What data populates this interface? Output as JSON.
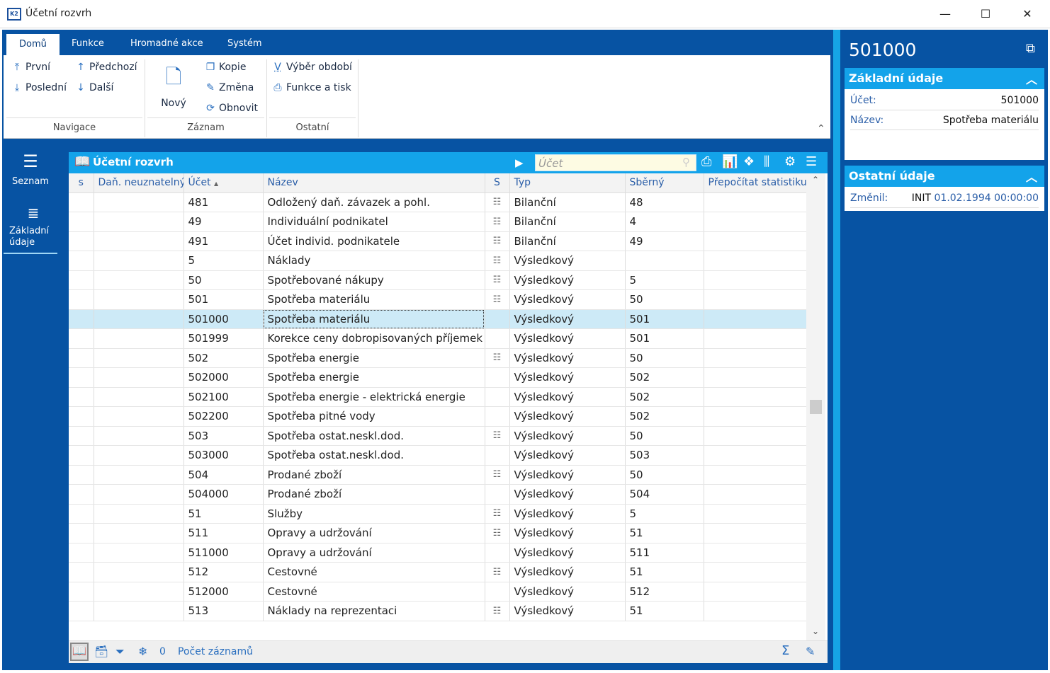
{
  "window": {
    "title": "Účetní rozvrh",
    "app_icon": "K2"
  },
  "ribbon": {
    "tabs": [
      "Domů",
      "Funkce",
      "Hromadné akce",
      "Systém"
    ],
    "nav": {
      "first": "První",
      "prev": "Předchozí",
      "last": "Poslední",
      "next": "Další",
      "group": "Navigace"
    },
    "record": {
      "new": "Nový",
      "copy": "Kopie",
      "edit": "Změna",
      "refresh": "Obnovit",
      "group": "Záznam"
    },
    "other": {
      "period": "Výběr období",
      "print": "Funkce a tisk",
      "group": "Ostatní"
    }
  },
  "sidebar": {
    "items": [
      {
        "label": "Seznam",
        "icon": "menu-icon"
      },
      {
        "label": "Základní údaje",
        "icon": "list-icon"
      }
    ]
  },
  "grid": {
    "title": "Účetní rozvrh",
    "search_placeholder": "Účet",
    "columns": [
      "s",
      "Daň. neuznatelný",
      "Účet",
      "Název",
      "S",
      "Typ",
      "Sběrný",
      "Přepočítat statistiku"
    ],
    "sort_indicator": "▲",
    "rows": [
      {
        "ucet": "481",
        "nazev": "Odložený daň. závazek a pohl.",
        "s": true,
        "typ": "Bilanční",
        "sberny": "48"
      },
      {
        "ucet": "49",
        "nazev": "Individuální podnikatel",
        "s": true,
        "typ": "Bilanční",
        "sberny": "4"
      },
      {
        "ucet": "491",
        "nazev": "Účet individ. podnikatele",
        "s": true,
        "typ": "Bilanční",
        "sberny": "49"
      },
      {
        "ucet": "5",
        "nazev": "Náklady",
        "s": true,
        "typ": "Výsledkový",
        "sberny": ""
      },
      {
        "ucet": "50",
        "nazev": "Spotřebované nákupy",
        "s": true,
        "typ": "Výsledkový",
        "sberny": "5"
      },
      {
        "ucet": "501",
        "nazev": "Spotřeba materiálu",
        "s": true,
        "typ": "Výsledkový",
        "sberny": "50"
      },
      {
        "ucet": "501000",
        "nazev": "Spotřeba materiálu",
        "s": false,
        "typ": "Výsledkový",
        "sberny": "501",
        "selected": true
      },
      {
        "ucet": "501999",
        "nazev": "Korekce ceny dobropisovaných příjemek",
        "s": false,
        "typ": "Výsledkový",
        "sberny": "501"
      },
      {
        "ucet": "502",
        "nazev": "Spotřeba energie",
        "s": true,
        "typ": "Výsledkový",
        "sberny": "50"
      },
      {
        "ucet": "502000",
        "nazev": "Spotřeba energie",
        "s": false,
        "typ": "Výsledkový",
        "sberny": "502"
      },
      {
        "ucet": "502100",
        "nazev": "Spotřeba energie - elektrická energie",
        "s": false,
        "typ": "Výsledkový",
        "sberny": "502"
      },
      {
        "ucet": "502200",
        "nazev": "Spotřeba pitné vody",
        "s": false,
        "typ": "Výsledkový",
        "sberny": "502"
      },
      {
        "ucet": "503",
        "nazev": "Spotřeba ostat.neskl.dod.",
        "s": true,
        "typ": "Výsledkový",
        "sberny": "50"
      },
      {
        "ucet": "503000",
        "nazev": "Spotřeba ostat.neskl.dod.",
        "s": false,
        "typ": "Výsledkový",
        "sberny": "503"
      },
      {
        "ucet": "504",
        "nazev": "Prodané zboží",
        "s": true,
        "typ": "Výsledkový",
        "sberny": "50"
      },
      {
        "ucet": "504000",
        "nazev": "Prodané zboží",
        "s": false,
        "typ": "Výsledkový",
        "sberny": "504"
      },
      {
        "ucet": "51",
        "nazev": "Služby",
        "s": true,
        "typ": "Výsledkový",
        "sberny": "5"
      },
      {
        "ucet": "511",
        "nazev": "Opravy a udržování",
        "s": true,
        "typ": "Výsledkový",
        "sberny": "51"
      },
      {
        "ucet": "511000",
        "nazev": "Opravy a udržování",
        "s": false,
        "typ": "Výsledkový",
        "sberny": "511"
      },
      {
        "ucet": "512",
        "nazev": "Cestovné",
        "s": true,
        "typ": "Výsledkový",
        "sberny": "51"
      },
      {
        "ucet": "512000",
        "nazev": "Cestovné",
        "s": false,
        "typ": "Výsledkový",
        "sberny": "512"
      },
      {
        "ucet": "513",
        "nazev": "Náklady na reprezentaci",
        "s": true,
        "typ": "Výsledkový",
        "sberny": "51"
      }
    ],
    "footer": {
      "filter_count": "0",
      "record_count_label": "Počet záznamů"
    }
  },
  "detail": {
    "title": "501000",
    "basic": {
      "header": "Základní údaje",
      "ucet_label": "Účet:",
      "ucet": "501000",
      "nazev_label": "Název:",
      "nazev": "Spotřeba materiálu"
    },
    "other": {
      "header": "Ostatní údaje",
      "changed_label": "Změnil:",
      "changed_user": "INIT",
      "changed_date": "01.02.1994 00:00:00"
    }
  },
  "colors": {
    "frame": "#0753a3",
    "accent": "#13a3ea",
    "selected_row": "#cdeaf7"
  }
}
